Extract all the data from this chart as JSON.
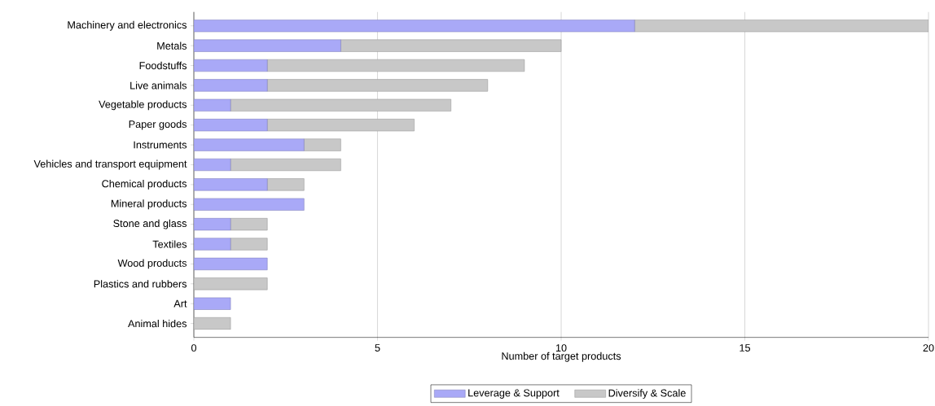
{
  "chart_data": {
    "type": "bar",
    "orientation": "horizontal",
    "stacked": true,
    "xlabel": "Number of target products",
    "categories": [
      "Machinery and electronics",
      "Metals",
      "Foodstuffs",
      "Live animals",
      "Vegetable products",
      "Paper goods",
      "Instruments",
      "Vehicles and transport equipment",
      "Chemical products",
      "Mineral products",
      "Stone and glass",
      "Textiles",
      "Wood products",
      "Plastics and rubbers",
      "Art",
      "Animal hides"
    ],
    "series": [
      {
        "name": "Leverage & Support",
        "color": "#a9a9f7",
        "values": [
          12,
          4,
          2,
          2,
          1,
          2,
          3,
          1,
          2,
          3,
          1,
          1,
          2,
          0,
          1,
          0
        ]
      },
      {
        "name": "Diversify & Scale",
        "color": "#c8c8c8",
        "values": [
          8,
          6,
          7,
          6,
          6,
          4,
          1,
          3,
          1,
          0,
          1,
          1,
          0,
          2,
          0,
          1
        ]
      }
    ],
    "xlim": [
      0,
      20
    ],
    "xticks": [
      0,
      5,
      10,
      15,
      20
    ],
    "grid": "x",
    "legend": "bottom"
  }
}
